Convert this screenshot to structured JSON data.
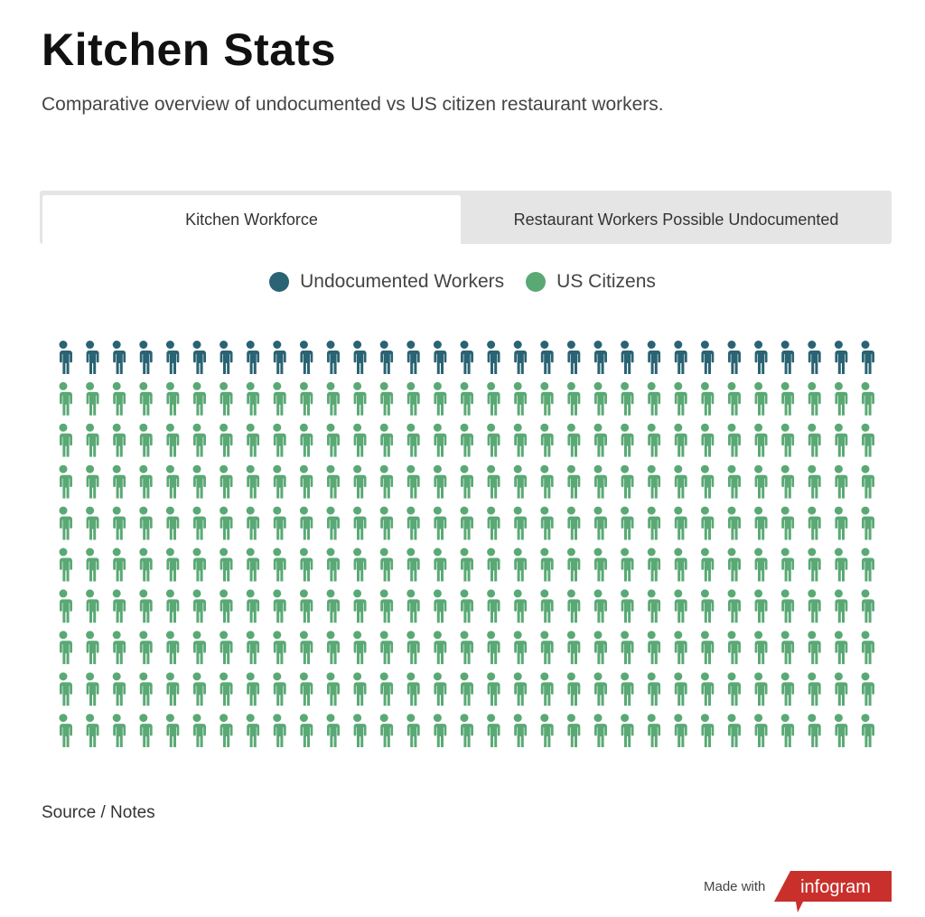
{
  "header": {
    "title": "Kitchen Stats",
    "subtitle": "Comparative overview of undocumented vs US citizen restaurant workers."
  },
  "tabs": [
    {
      "label": "Kitchen Workforce",
      "active": true
    },
    {
      "label": "Restaurant Workers Possible Undocumented",
      "active": false
    }
  ],
  "chart_data": {
    "type": "pictogram",
    "title": "Kitchen Workforce",
    "columns": 31,
    "rows": 10,
    "series": [
      {
        "name": "Undocumented Workers",
        "value": 31,
        "color": "#2a6373"
      },
      {
        "name": "US Citizens",
        "value": 279,
        "color": "#5aa975"
      }
    ],
    "legend_position": "top-center",
    "icon": "person-icon"
  },
  "footer": {
    "source": "Source / Notes",
    "made_with": "Made with",
    "brand": "infogram",
    "brand_color": "#c9302c"
  }
}
